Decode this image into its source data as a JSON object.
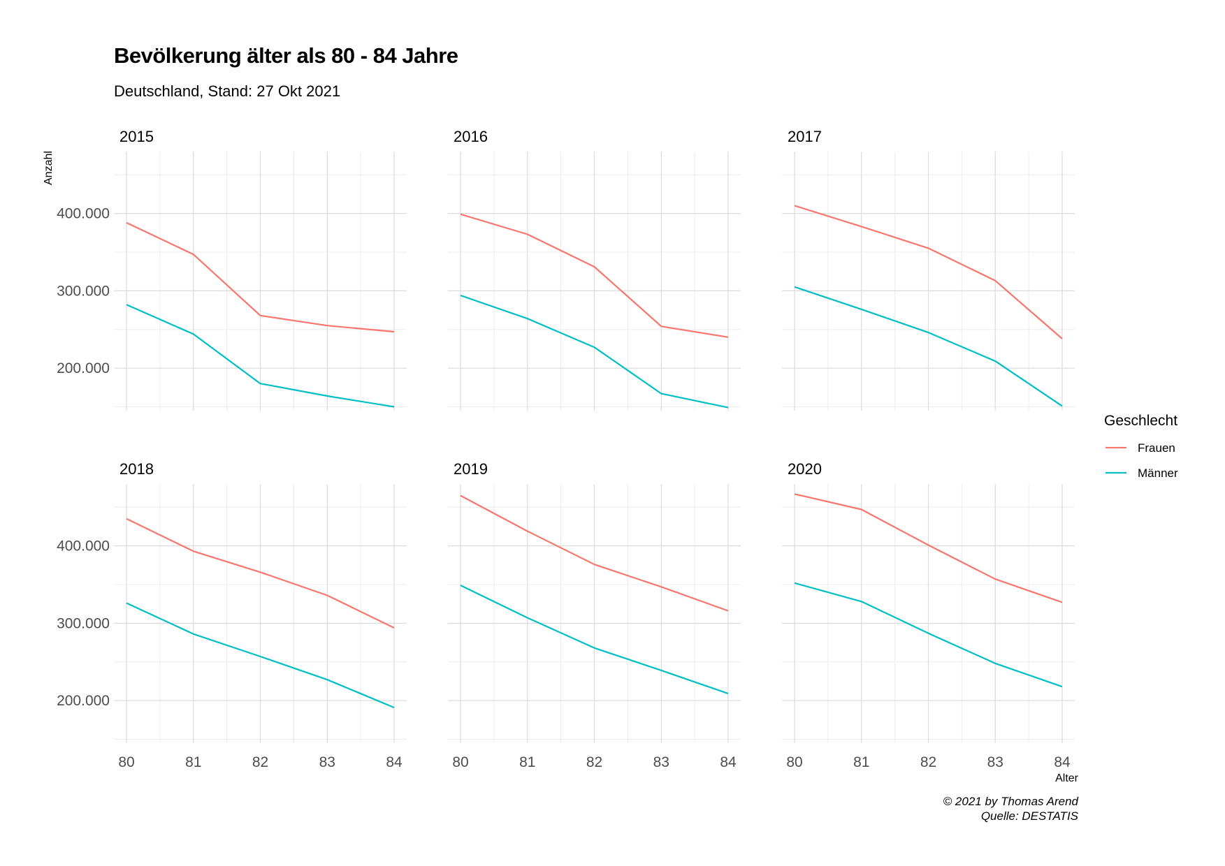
{
  "chart_data": {
    "type": "line",
    "title": "Bevölkerung älter als 80 - 84 Jahre",
    "subtitle": "Deutschland, Stand: 27 Okt 2021",
    "xlabel": "Alter",
    "ylabel": "Anzahl",
    "x": [
      80,
      81,
      82,
      83,
      84
    ],
    "x_tick_labels": [
      "80",
      "81",
      "82",
      "83",
      "84"
    ],
    "y_ticks": [
      200000,
      300000,
      400000
    ],
    "y_tick_labels": [
      "200.000",
      "300.000",
      "400.000"
    ],
    "ylim": [
      145000,
      480000
    ],
    "grid": true,
    "legend": {
      "title": "Geschlecht",
      "placement": "right",
      "entries": [
        {
          "label": "Frauen",
          "color": "#F8766D"
        },
        {
          "label": "Männer",
          "color": "#00BFC4"
        }
      ]
    },
    "facets": [
      {
        "label": "2015",
        "series": [
          {
            "name": "Frauen",
            "values": [
              388000,
              347000,
              268000,
              255000,
              247000
            ]
          },
          {
            "name": "Männer",
            "values": [
              282000,
              244000,
              180000,
              164000,
              150000
            ]
          }
        ]
      },
      {
        "label": "2016",
        "series": [
          {
            "name": "Frauen",
            "values": [
              399000,
              373000,
              331000,
              254000,
              240000
            ]
          },
          {
            "name": "Männer",
            "values": [
              294000,
              264000,
              227000,
              167000,
              149000
            ]
          }
        ]
      },
      {
        "label": "2017",
        "series": [
          {
            "name": "Frauen",
            "values": [
              410000,
              383000,
              355000,
              313000,
              238000
            ]
          },
          {
            "name": "Männer",
            "values": [
              305000,
              276000,
              246000,
              209000,
              151000
            ]
          }
        ]
      },
      {
        "label": "2018",
        "series": [
          {
            "name": "Frauen",
            "values": [
              435000,
              393000,
              366000,
              336000,
              294000
            ]
          },
          {
            "name": "Männer",
            "values": [
              326000,
              286000,
              257000,
              227000,
              191000
            ]
          }
        ]
      },
      {
        "label": "2019",
        "series": [
          {
            "name": "Frauen",
            "values": [
              465000,
              419000,
              376000,
              347000,
              316000
            ]
          },
          {
            "name": "Männer",
            "values": [
              349000,
              307000,
              268000,
              239000,
              209000
            ]
          }
        ]
      },
      {
        "label": "2020",
        "series": [
          {
            "name": "Frauen",
            "values": [
              467000,
              447000,
              401000,
              357000,
              327000
            ]
          },
          {
            "name": "Männer",
            "values": [
              352000,
              328000,
              287000,
              248000,
              218000
            ]
          }
        ]
      }
    ],
    "caption": [
      "© 2021 by Thomas Arend",
      "Quelle: DESTATIS"
    ]
  }
}
